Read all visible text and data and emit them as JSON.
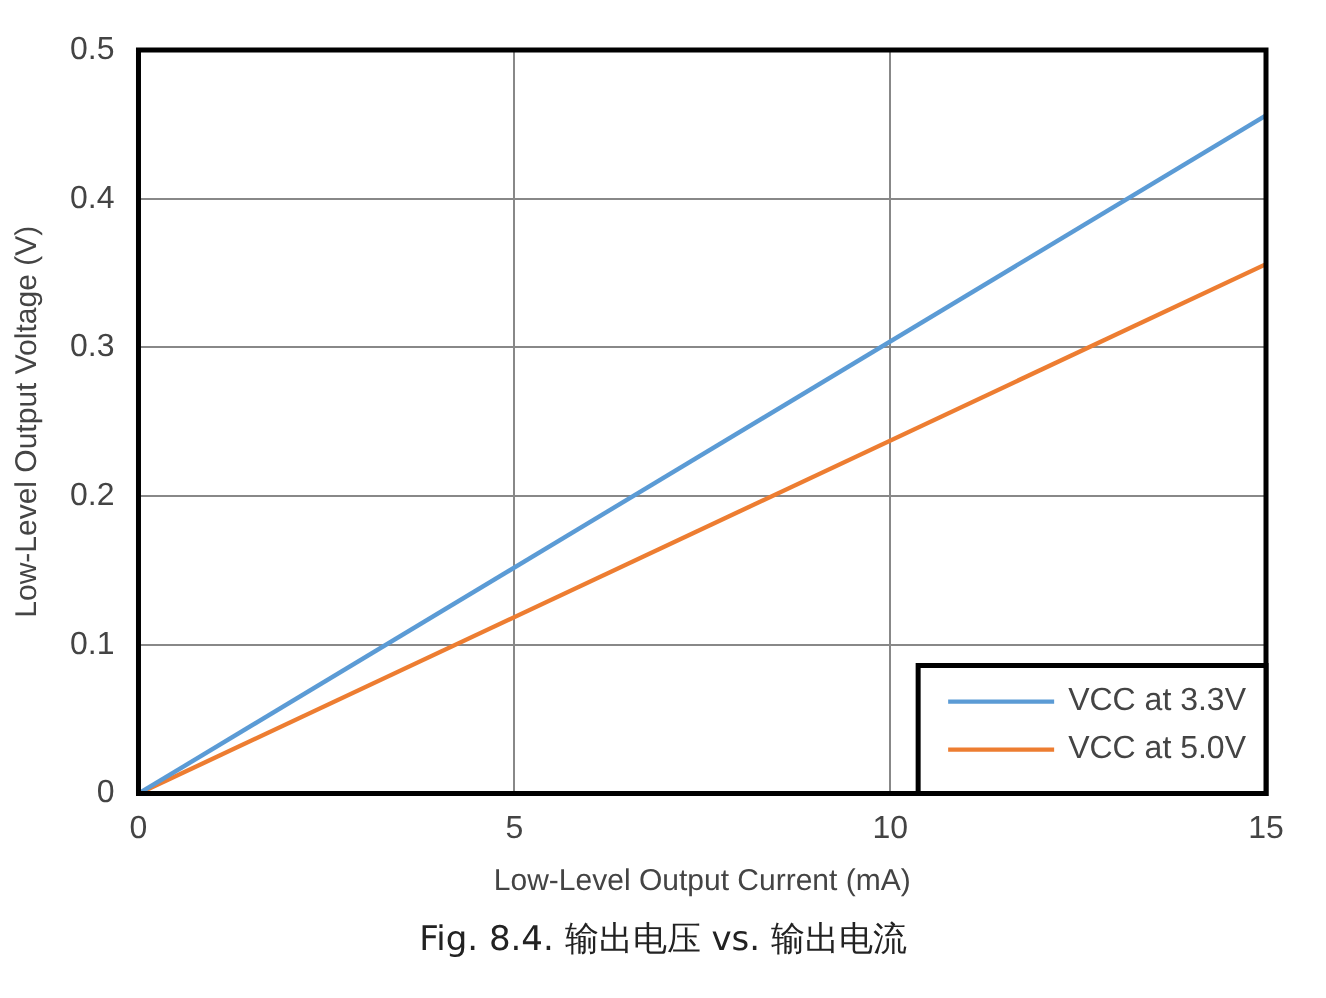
{
  "chart_data": {
    "type": "line",
    "xlabel": "Low-Level Output Current (mA)",
    "ylabel": "Low-Level Output Voltage (V)",
    "x": [
      0,
      15
    ],
    "series": [
      {
        "name": "VCC at 3.3V",
        "color": "#5b9bd5",
        "values": [
          0,
          0.456
        ]
      },
      {
        "name": "VCC at 5.0V",
        "color": "#ed7d31",
        "values": [
          0,
          0.356
        ]
      }
    ],
    "xlim": [
      0,
      15
    ],
    "xticks": [
      0,
      5,
      10,
      15
    ],
    "ylim": [
      0,
      0.5
    ],
    "yticks": [
      0,
      0.1,
      0.2,
      0.3,
      0.4,
      0.5
    ],
    "grid": true,
    "legend": "bottom right",
    "marker": "none",
    "line_style": "solid",
    "annotations": [
      "Fig. 8.4. 输出电压 vs. 输出电流"
    ]
  }
}
